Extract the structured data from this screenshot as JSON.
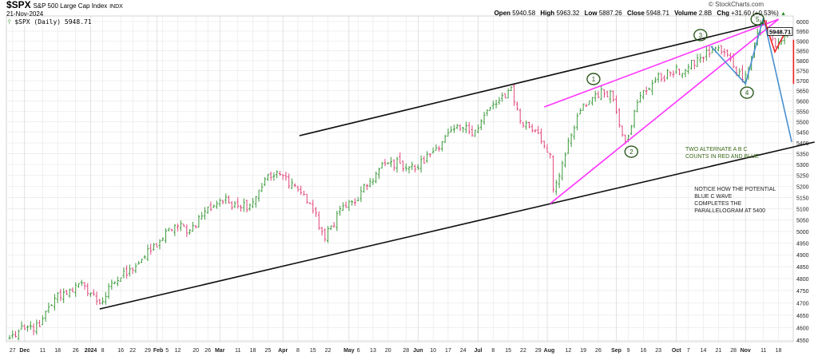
{
  "header": {
    "symbol": "$SPX",
    "name": "S&P 500 Large Cap Index",
    "exchange": "INDX",
    "date": "21-Nov-2024",
    "legend": "$SPX (Daily) 5948.71",
    "copyright": "© StockCharts.com",
    "open_label": "Open",
    "open": "5940.58",
    "high_label": "High",
    "high": "5963.32",
    "low_label": "Low",
    "low": "5887.26",
    "close_label": "Close",
    "close": "5948.71",
    "volume_label": "Volume",
    "volume": "2.8B",
    "chg_label": "Chg",
    "chg": "+31.60 (+0.53%)",
    "chg_arrow": "▲"
  },
  "chart_data": {
    "type": "ohlc",
    "title": "$SPX S&P 500 Large Cap Index",
    "yscale": "log",
    "ylim": [
      4530,
      6070
    ],
    "last_price_label": "5948.71",
    "colors": {
      "up": "#3c9a3c",
      "down": "#e0457a",
      "grid": "#e6e6e6"
    },
    "close_anchors": [
      [
        0,
        4559
      ],
      [
        5,
        4594
      ],
      [
        10,
        4604
      ],
      [
        15,
        4719
      ],
      [
        20,
        4754
      ],
      [
        25,
        4770
      ],
      [
        30,
        4697
      ],
      [
        35,
        4784
      ],
      [
        40,
        4840
      ],
      [
        45,
        4891
      ],
      [
        50,
        4959
      ],
      [
        55,
        5027
      ],
      [
        60,
        5006
      ],
      [
        65,
        5089
      ],
      [
        70,
        5137
      ],
      [
        75,
        5124
      ],
      [
        80,
        5117
      ],
      [
        85,
        5234
      ],
      [
        90,
        5254
      ],
      [
        95,
        5204
      ],
      [
        100,
        5123
      ],
      [
        105,
        4967
      ],
      [
        110,
        5100
      ],
      [
        115,
        5128
      ],
      [
        120,
        5223
      ],
      [
        125,
        5303
      ],
      [
        130,
        5305
      ],
      [
        135,
        5278
      ],
      [
        140,
        5347
      ],
      [
        145,
        5431
      ],
      [
        150,
        5465
      ],
      [
        155,
        5460
      ],
      [
        160,
        5567
      ],
      [
        165,
        5615
      ],
      [
        167,
        5667
      ],
      [
        170,
        5505
      ],
      [
        175,
        5459
      ],
      [
        180,
        5346
      ],
      [
        181,
        5186
      ],
      [
        185,
        5344
      ],
      [
        190,
        5554
      ],
      [
        195,
        5634
      ],
      [
        200,
        5648
      ],
      [
        205,
        5408
      ],
      [
        210,
        5626
      ],
      [
        215,
        5703
      ],
      [
        220,
        5738
      ],
      [
        225,
        5751
      ],
      [
        230,
        5815
      ],
      [
        235,
        5864
      ],
      [
        240,
        5808
      ],
      [
        244,
        5705
      ],
      [
        245,
        5729
      ],
      [
        250,
        5995
      ],
      [
        251,
        6001
      ],
      [
        255,
        5870
      ],
      [
        259,
        5948.71
      ]
    ],
    "yticks": [
      4550,
      4600,
      4650,
      4700,
      4750,
      4800,
      4850,
      4900,
      4950,
      5000,
      5050,
      5100,
      5150,
      5200,
      5250,
      5300,
      5350,
      5400,
      5450,
      5500,
      5550,
      5600,
      5650,
      5700,
      5750,
      5800,
      5850,
      5900,
      5950,
      6000
    ],
    "xticks": [
      {
        "label": "27",
        "day": 1
      },
      {
        "label": "Dec",
        "day": 5,
        "month": true
      },
      {
        "label": "11",
        "day": 11
      },
      {
        "label": "18",
        "day": 16
      },
      {
        "label": "26",
        "day": 22
      },
      {
        "label": "2024",
        "day": 27,
        "month": true
      },
      {
        "label": "8",
        "day": 31
      },
      {
        "label": "16",
        "day": 37
      },
      {
        "label": "22",
        "day": 41
      },
      {
        "label": "29",
        "day": 46
      },
      {
        "label": "Feb",
        "day": 49,
        "month": true
      },
      {
        "label": "5",
        "day": 51
      },
      {
        "label": "12",
        "day": 56
      },
      {
        "label": "20",
        "day": 62
      },
      {
        "label": "26",
        "day": 66
      },
      {
        "label": "Mar",
        "day": 70,
        "month": true
      },
      {
        "label": "11",
        "day": 76
      },
      {
        "label": "18",
        "day": 81
      },
      {
        "label": "25",
        "day": 86
      },
      {
        "label": "Apr",
        "day": 91,
        "month": true
      },
      {
        "label": "8",
        "day": 96
      },
      {
        "label": "15",
        "day": 101
      },
      {
        "label": "22",
        "day": 106
      },
      {
        "label": "May",
        "day": 113,
        "month": true
      },
      {
        "label": "6",
        "day": 116
      },
      {
        "label": "13",
        "day": 121
      },
      {
        "label": "20",
        "day": 126
      },
      {
        "label": "28",
        "day": 132
      },
      {
        "label": "Jun",
        "day": 136,
        "month": true
      },
      {
        "label": "10",
        "day": 141
      },
      {
        "label": "17",
        "day": 146
      },
      {
        "label": "24",
        "day": 151
      },
      {
        "label": "Jul",
        "day": 156,
        "month": true
      },
      {
        "label": "8",
        "day": 161
      },
      {
        "label": "15",
        "day": 166
      },
      {
        "label": "22",
        "day": 171
      },
      {
        "label": "29",
        "day": 176
      },
      {
        "label": "Aug",
        "day": 179,
        "month": true
      },
      {
        "label": "12",
        "day": 186
      },
      {
        "label": "19",
        "day": 191
      },
      {
        "label": "26",
        "day": 196
      },
      {
        "label": "Sep",
        "day": 202,
        "month": true
      },
      {
        "label": "9",
        "day": 206
      },
      {
        "label": "16",
        "day": 211
      },
      {
        "label": "23",
        "day": 216
      },
      {
        "label": "Oct",
        "day": 222,
        "month": true
      },
      {
        "label": "7",
        "day": 226
      },
      {
        "label": "14",
        "day": 231
      },
      {
        "label": "21",
        "day": 236
      },
      {
        "label": "28",
        "day": 241
      },
      {
        "label": "Nov",
        "day": 245,
        "month": true
      },
      {
        "label": "11",
        "day": 251
      },
      {
        "label": "18",
        "day": 256
      }
    ],
    "trendlines": [
      {
        "name": "lower-channel-line",
        "color": "#111111",
        "points": [
          [
            30,
            4675
          ],
          [
            268,
            5404
          ]
        ]
      },
      {
        "name": "upper-channel-line",
        "color": "#111111",
        "points": [
          [
            96.5,
            5434
          ],
          [
            251,
            5988
          ]
        ]
      },
      {
        "name": "magenta-upper-line",
        "color": "#ff33ff",
        "points": [
          [
            178,
            5571
          ],
          [
            256,
            6012
          ]
        ]
      },
      {
        "name": "magenta-lower-line",
        "color": "#ff33ff",
        "points": [
          [
            180,
            5123
          ],
          [
            256,
            6012
          ]
        ]
      },
      {
        "name": "blue-abc-line",
        "color": "#4a8fd0",
        "points": [
          [
            233.5,
            5873
          ],
          [
            245,
            5684
          ],
          [
            251,
            6021
          ],
          [
            260.4,
            5404
          ]
        ]
      },
      {
        "name": "red-abc-line",
        "color": "#ee2222",
        "points": [
          [
            251.3,
            6008
          ],
          [
            254.8,
            5844
          ],
          [
            259,
            5967
          ]
        ]
      },
      {
        "name": "red-vertical-line",
        "color": "#ee2222",
        "points": [
          [
            261,
            5906
          ],
          [
            261,
            5684
          ]
        ]
      }
    ],
    "wave_labels": [
      {
        "label": "1",
        "day": 194.4,
        "price": 5708
      },
      {
        "label": "2",
        "day": 207,
        "price": 5359
      },
      {
        "label": "3",
        "day": 230,
        "price": 5930
      },
      {
        "label": "4",
        "day": 245.5,
        "price": 5641
      },
      {
        "label": "5",
        "day": 249,
        "price": 6012
      }
    ],
    "annotations": [
      {
        "lines": [
          "TWO ALTERNATE A B C",
          "COUNTS IN RED AND BLUE"
        ],
        "day": 225,
        "price": 5389,
        "color": "#3a6a1a"
      },
      {
        "lines": [
          "NOTICE HOW THE POTENTIAL",
          "BLUE C WAVE",
          "COMPLETES THE",
          "PARALLELOGRAM AT 5400"
        ],
        "day": 228,
        "price": 5206,
        "color": "#222222"
      }
    ]
  }
}
